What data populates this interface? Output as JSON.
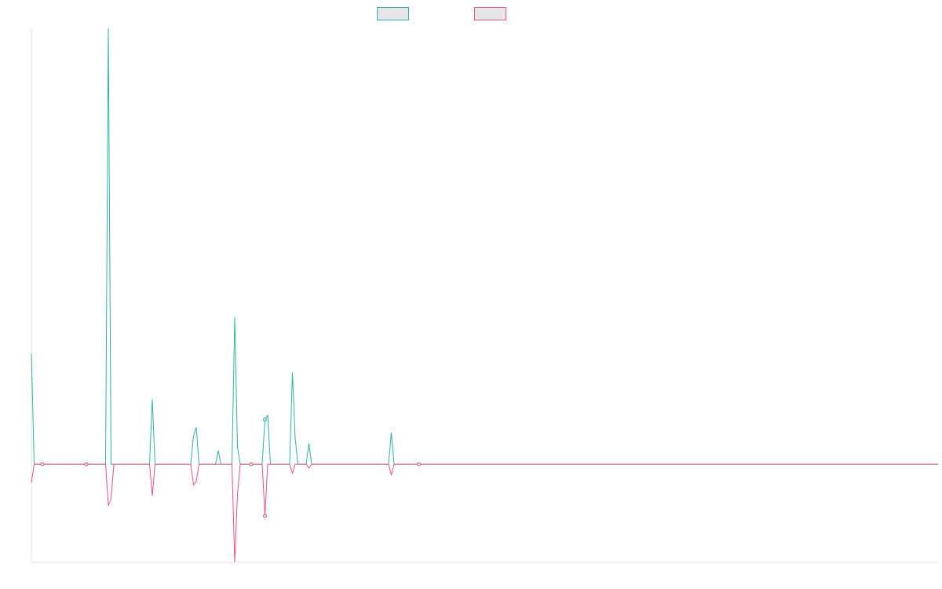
{
  "chart_data": {
    "type": "line",
    "title": "",
    "xlabel": "",
    "ylabel": "",
    "legend_position": "top-center",
    "grid": false,
    "x": [
      0,
      1,
      2,
      3,
      4,
      5,
      6,
      7,
      8,
      9,
      10,
      11,
      12,
      13,
      14,
      15,
      16,
      17,
      18,
      19,
      20,
      21,
      22,
      23,
      24,
      25,
      26,
      27,
      28,
      29,
      30,
      31,
      32,
      33,
      34,
      35,
      36,
      37,
      38,
      39,
      40,
      41,
      42,
      43,
      44,
      45,
      46,
      47,
      48,
      49,
      50,
      51,
      52,
      53,
      54,
      55,
      56,
      57,
      58,
      59,
      60,
      61,
      62,
      63,
      64,
      65,
      66,
      67,
      68,
      69,
      70,
      71,
      72,
      73,
      74,
      75,
      76,
      77,
      78,
      79,
      80,
      81,
      82,
      83,
      84,
      85,
      86,
      87,
      88,
      89,
      90,
      91,
      92,
      93,
      94,
      95,
      96,
      97,
      98,
      99,
      100,
      101,
      102,
      103,
      104,
      105,
      106,
      107,
      108,
      109,
      110,
      111,
      112,
      113,
      114,
      115,
      116,
      117,
      118,
      119,
      120,
      121,
      122,
      123,
      124,
      125,
      126,
      127,
      128,
      129,
      130,
      131,
      132,
      133,
      134,
      135,
      136,
      137,
      138,
      139,
      140,
      141,
      142,
      143,
      144,
      145,
      146,
      147,
      148,
      149,
      150,
      151,
      152,
      153,
      154,
      155,
      156,
      157,
      158,
      159,
      160,
      161,
      162,
      163,
      164,
      165,
      166,
      167,
      168,
      169,
      170,
      171,
      172,
      173,
      174,
      175,
      176,
      177,
      178,
      179,
      180,
      181,
      182,
      183,
      184,
      185,
      186,
      187,
      188,
      189,
      190,
      191,
      192,
      193,
      194,
      195,
      196,
      197,
      198,
      199,
      200,
      201,
      202,
      203,
      204,
      205,
      206,
      207,
      208,
      209,
      210,
      211,
      212,
      213,
      214,
      215,
      216,
      217,
      218,
      219,
      220,
      221,
      222,
      223,
      224,
      225,
      226,
      227,
      228,
      229,
      230,
      231,
      232,
      233,
      234,
      235,
      236,
      237,
      238,
      239,
      240,
      241,
      242,
      243,
      244,
      245,
      246,
      247,
      248,
      249,
      250,
      251,
      252,
      253,
      254,
      255,
      256,
      257,
      258,
      259,
      260,
      261,
      262,
      263,
      264,
      265,
      266,
      267,
      268,
      269,
      270,
      271,
      272,
      273,
      274,
      275,
      276,
      277,
      278,
      279,
      280,
      281,
      282,
      283,
      284,
      285,
      286,
      287,
      288,
      289,
      290,
      291,
      292,
      293,
      294,
      295,
      296,
      297,
      298,
      299,
      300,
      301,
      302,
      303,
      304,
      305,
      306,
      307,
      308,
      309,
      310,
      311,
      312,
      313,
      314,
      315,
      316,
      317,
      318,
      319,
      320,
      321,
      322,
      323,
      324,
      325,
      326,
      327,
      328,
      329,
      330
    ],
    "xlim": [
      0,
      330
    ],
    "ylim": [
      -1.8,
      8
    ],
    "series": [
      {
        "color": "#2bb3a6",
        "direction": "up",
        "marker_fill": "#e6e6e6",
        "nonzero": [
          [
            0,
            2.03
          ],
          [
            28,
            8.0
          ],
          [
            44,
            1.19
          ],
          [
            59,
            0.52
          ],
          [
            60,
            0.68
          ],
          [
            68,
            0.25
          ],
          [
            74,
            2.7
          ],
          [
            75,
            0.31
          ],
          [
            85,
            0.82
          ],
          [
            86,
            0.9
          ],
          [
            95,
            1.68
          ],
          [
            96,
            0.48
          ],
          [
            101,
            0.38
          ],
          [
            131,
            0.58
          ]
        ],
        "markers": [
          4,
          20,
          80,
          85,
          141
        ]
      },
      {
        "color": "#f0507a",
        "direction": "down",
        "marker_fill": "#e6e6e6",
        "nonzero": [
          [
            0,
            0.34
          ],
          [
            28,
            0.76
          ],
          [
            29,
            0.64
          ],
          [
            44,
            0.58
          ],
          [
            59,
            0.38
          ],
          [
            60,
            0.32
          ],
          [
            74,
            1.8
          ],
          [
            75,
            0.55
          ],
          [
            85,
            0.95
          ],
          [
            95,
            0.17
          ],
          [
            101,
            0.07
          ],
          [
            131,
            0.2
          ]
        ],
        "markers": [
          4,
          20,
          80,
          85,
          141
        ]
      }
    ]
  }
}
